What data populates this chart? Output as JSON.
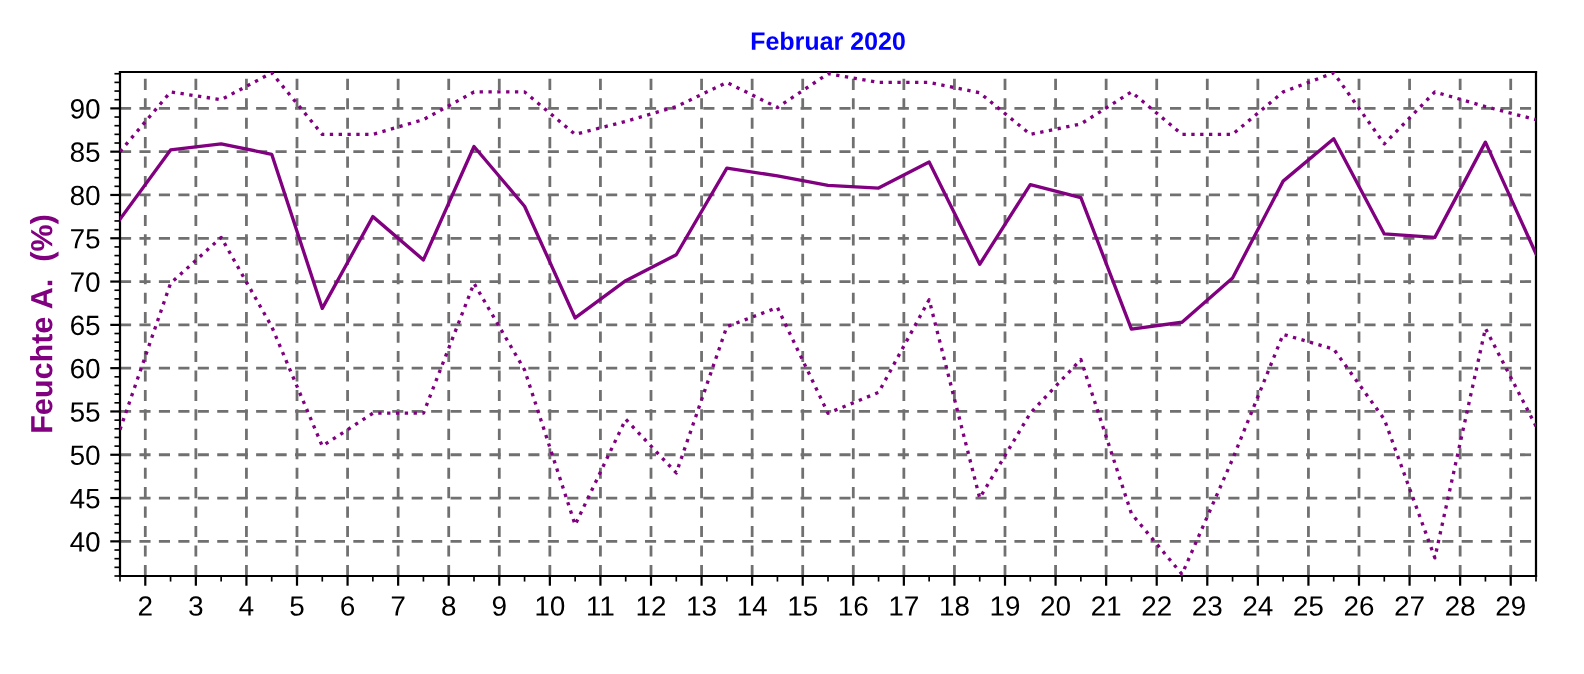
{
  "chart_data": {
    "type": "line",
    "title": "Februar 2020",
    "ylabel": "Feuchte A.  (%)",
    "x": [
      1.5,
      2.5,
      3.5,
      4.5,
      5.5,
      6.5,
      7.5,
      8.5,
      9.5,
      10.5,
      11.5,
      12.5,
      13.5,
      14.5,
      15.5,
      16.5,
      17.5,
      18.5,
      19.5,
      20.5,
      21.5,
      22.5,
      23.5,
      24.5,
      25.5,
      26.5,
      27.5,
      28.5,
      29.5
    ],
    "series": [
      {
        "color": "#800080",
        "line_style": "dotted",
        "values": [
          85,
          91.9,
          91,
          94.1,
          87,
          87,
          88.7,
          91.9,
          91.9,
          87,
          88.5,
          90.2,
          93,
          90.1,
          94,
          93,
          93,
          91.8,
          87,
          88.2,
          91.9,
          87,
          87,
          91.9,
          94.1,
          85.9,
          91.9,
          90.2,
          88.7
        ]
      },
      {
        "color": "#800080",
        "line_style": "solid",
        "values": [
          77.2,
          85.2,
          85.9,
          84.7,
          66.9,
          77.5,
          72.5,
          85.6,
          78.7,
          65.8,
          70.1,
          73.1,
          83.1,
          82.2,
          81.1,
          80.8,
          83.8,
          72,
          81.2,
          79.7,
          64.5,
          65.3,
          70.4,
          81.6,
          86.5,
          75.5,
          75.1,
          86.1,
          73.2
        ]
      },
      {
        "color": "#800080",
        "line_style": "dotted",
        "values": [
          52.9,
          69.8,
          75.1,
          64.8,
          51,
          54.8,
          54.8,
          69.8,
          59.8,
          41.9,
          54.1,
          47.9,
          64.8,
          67,
          54.8,
          57.2,
          67.9,
          45,
          54.8,
          61,
          43.2,
          36.2,
          49.5,
          63.9,
          62.2,
          54.1,
          38.1,
          64.6,
          53.3
        ]
      }
    ],
    "xlim": [
      1.5,
      29.5
    ],
    "xticks": [
      2,
      3,
      4,
      5,
      6,
      7,
      8,
      9,
      10,
      11,
      12,
      13,
      14,
      15,
      16,
      17,
      18,
      19,
      20,
      21,
      22,
      23,
      24,
      25,
      26,
      27,
      28,
      29
    ],
    "ylim": [
      36,
      94.2
    ],
    "yticks": [
      40,
      45,
      50,
      55,
      60,
      65,
      70,
      75,
      80,
      85,
      90
    ],
    "grid": true,
    "marker": "none"
  }
}
